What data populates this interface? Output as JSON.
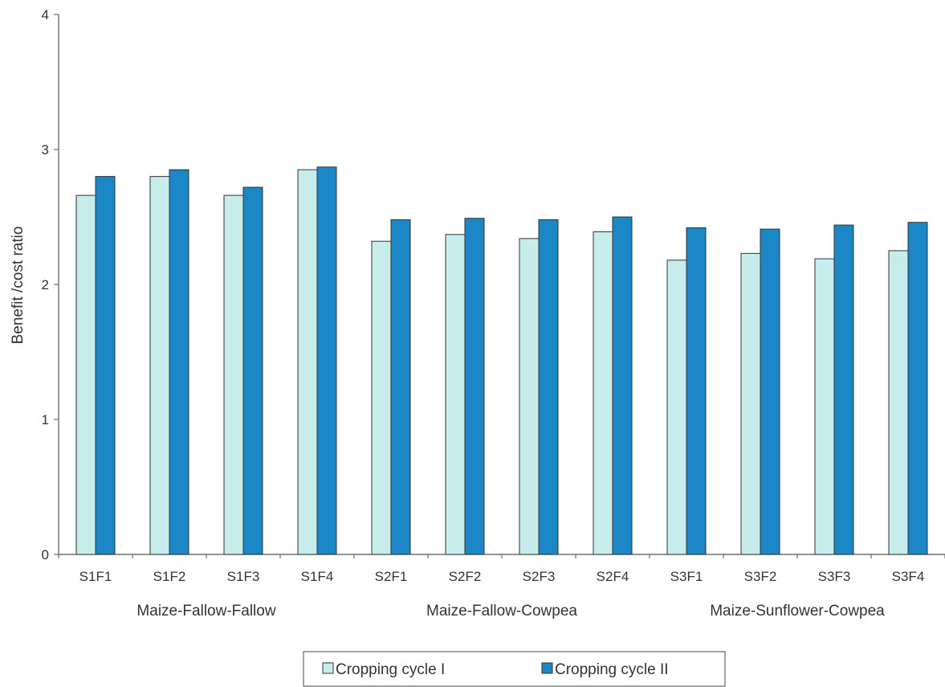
{
  "chart_data": {
    "type": "bar",
    "categories": [
      "S1F1",
      "S1F2",
      "S1F3",
      "S1F4",
      "S2F1",
      "S2F2",
      "S2F3",
      "S2F4",
      "S3F1",
      "S3F2",
      "S3F3",
      "S3F4"
    ],
    "groups": [
      {
        "label": "Maize-Fallow-Fallow",
        "categories": [
          "S1F1",
          "S1F2",
          "S1F3",
          "S1F4"
        ]
      },
      {
        "label": "Maize-Fallow-Cowpea",
        "categories": [
          "S2F1",
          "S2F2",
          "S2F3",
          "S2F4"
        ]
      },
      {
        "label": "Maize-Sunflower-Cowpea",
        "categories": [
          "S3F1",
          "S3F2",
          "S3F3",
          "S3F4"
        ]
      }
    ],
    "series": [
      {
        "name": "Cropping cycle I",
        "color": "#c6ecec",
        "values": [
          2.66,
          2.8,
          2.66,
          2.85,
          2.32,
          2.37,
          2.34,
          2.39,
          2.18,
          2.23,
          2.19,
          2.25
        ]
      },
      {
        "name": "Cropping cycle II",
        "color": "#1b87c6",
        "values": [
          2.8,
          2.85,
          2.72,
          2.87,
          2.48,
          2.49,
          2.48,
          2.5,
          2.42,
          2.41,
          2.44,
          2.46
        ]
      }
    ],
    "ylabel": "Benefit /cost ratio",
    "xlabel": "",
    "ylim": [
      0,
      4
    ],
    "yticks": [
      "0",
      "1",
      "2",
      "3",
      "4"
    ],
    "grid": false,
    "legend_position": "bottom"
  }
}
